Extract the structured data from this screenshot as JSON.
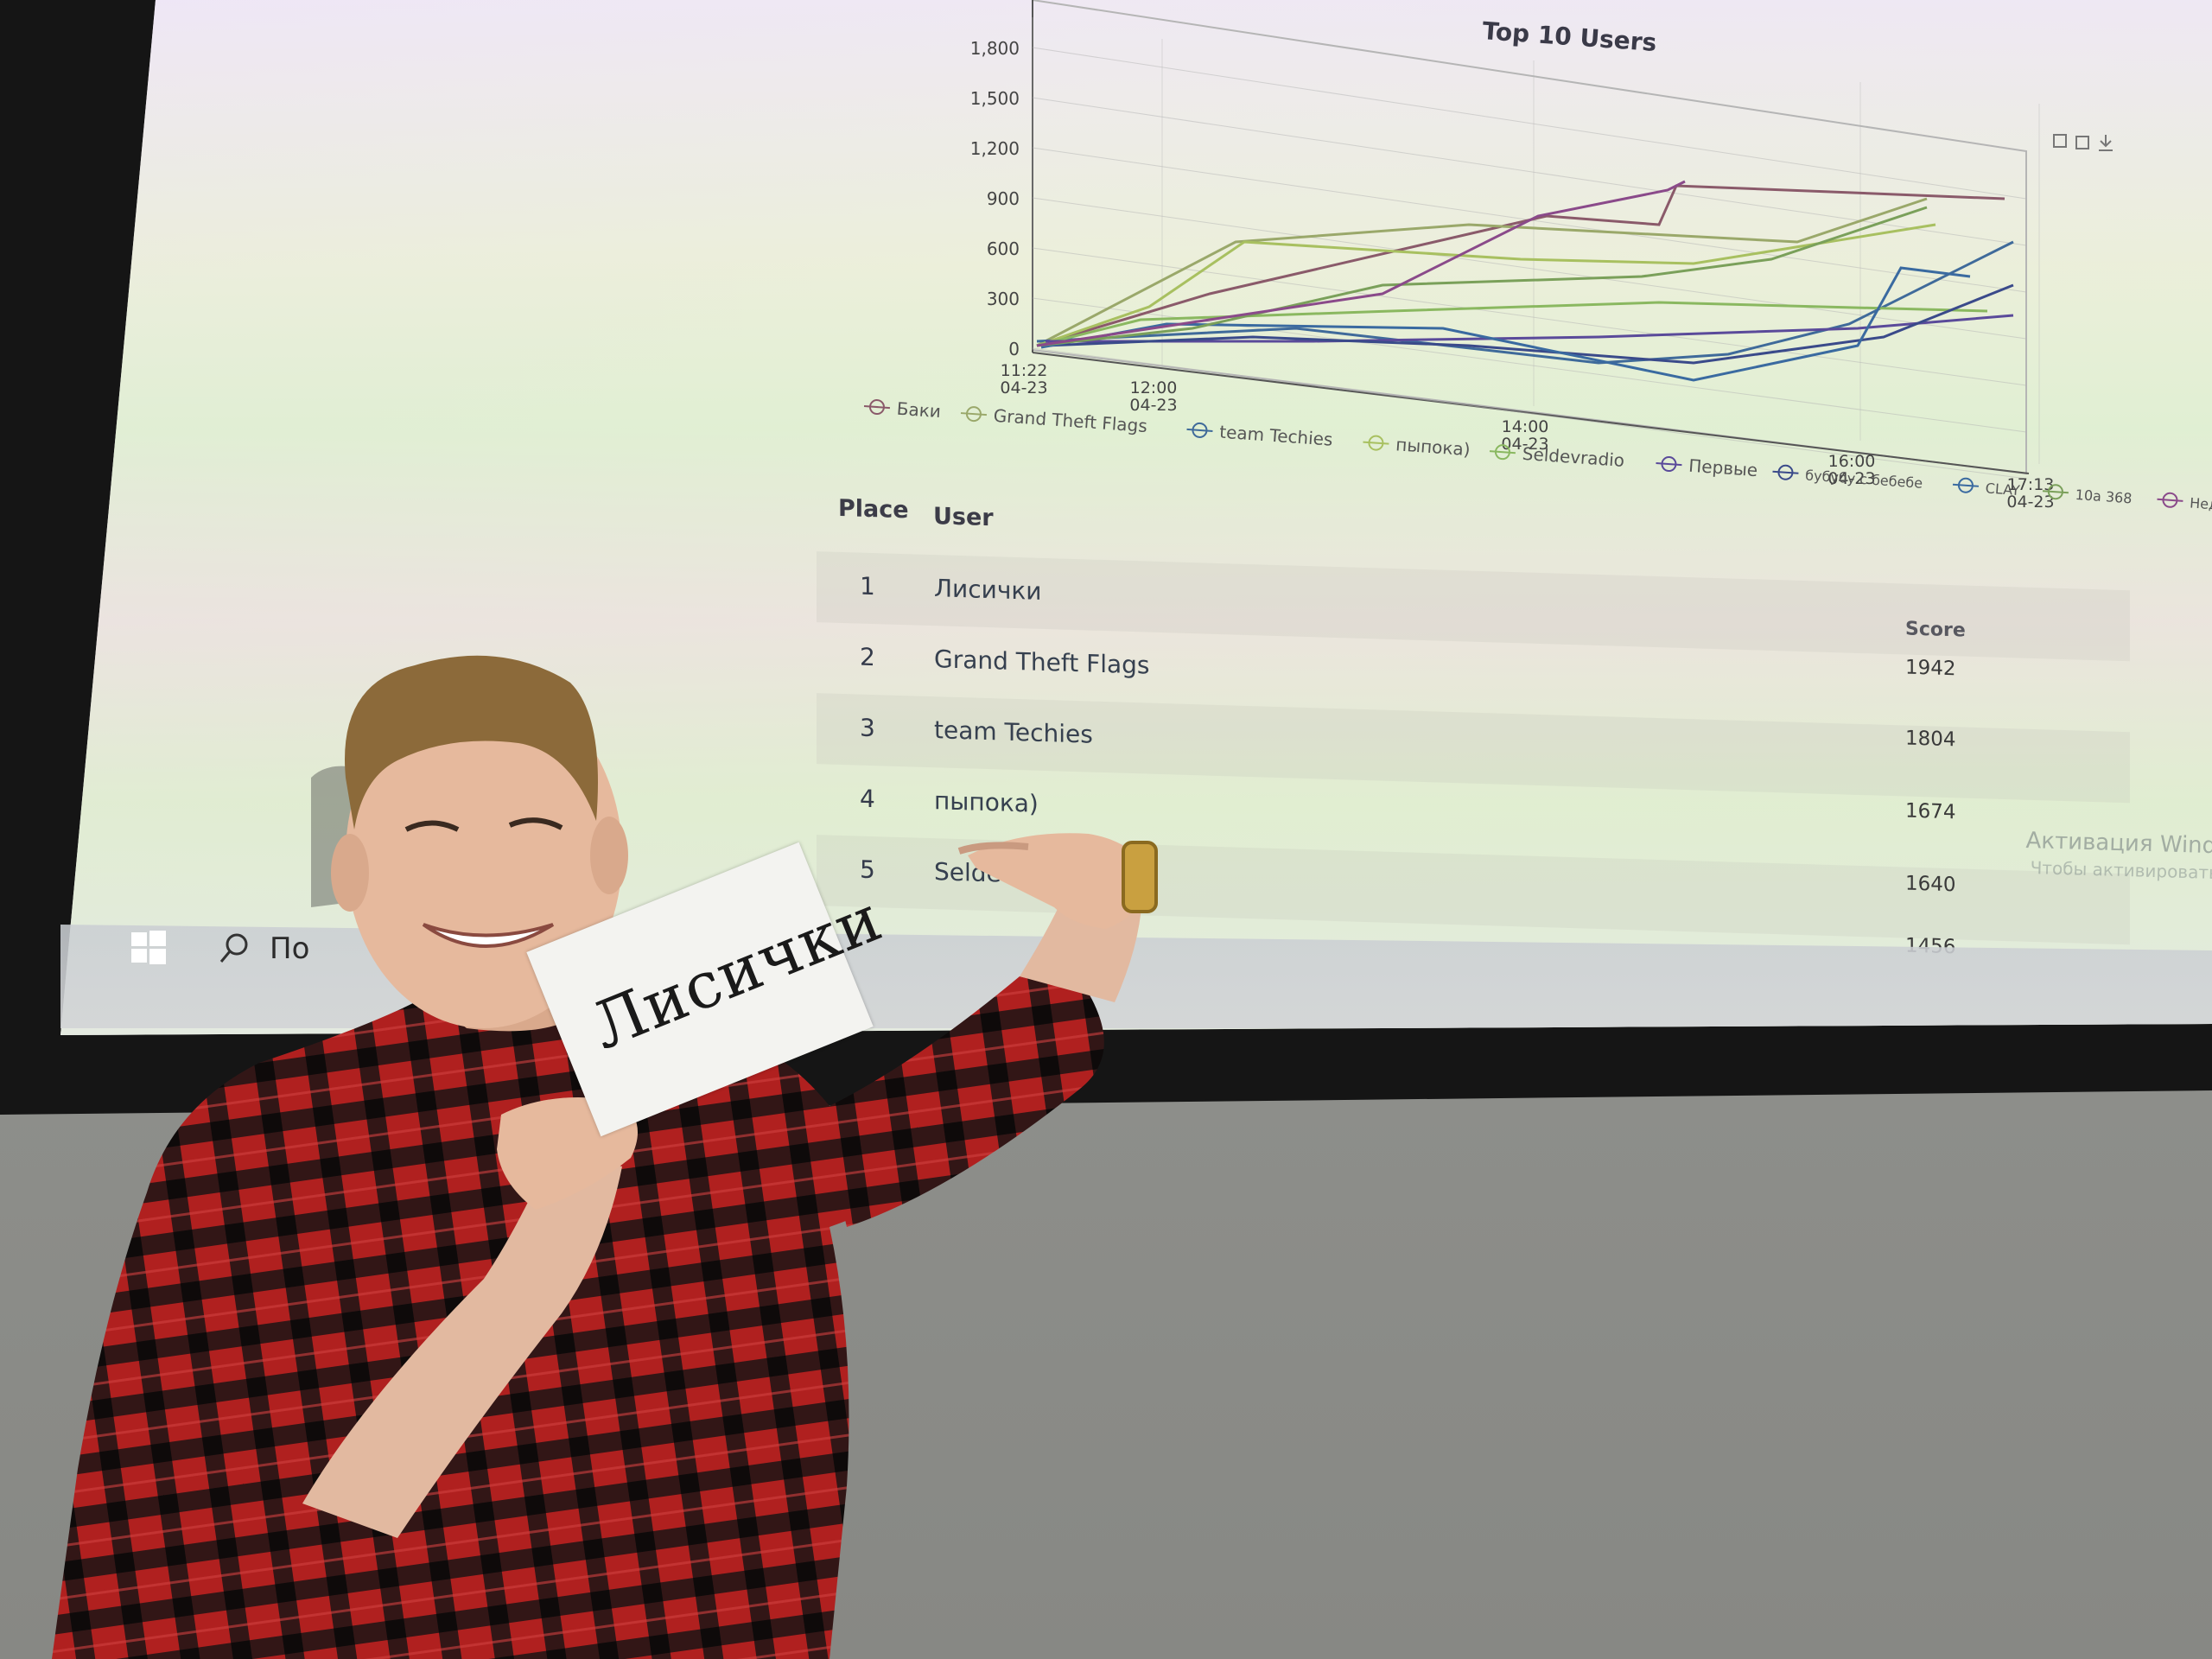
{
  "chart": {
    "title": "Top 10 Users",
    "y_ticks": [
      "1,800",
      "1,500",
      "1,200",
      "900",
      "600",
      "300",
      "0"
    ],
    "x_ticks": [
      {
        "time": "11:22",
        "date": "04-23"
      },
      {
        "time": "12:00",
        "date": "04-23"
      },
      {
        "time": "14:00",
        "date": "04-23"
      },
      {
        "time": "16:00",
        "date": "04-23"
      },
      {
        "time": "17:13",
        "date": "04-23"
      }
    ],
    "legend": [
      {
        "name": "Баки",
        "color": "#8a5a6a"
      },
      {
        "name": "Grand Theft Flags",
        "color": "#9aa86a"
      },
      {
        "name": "team Techies",
        "color": "#3f6a9a"
      },
      {
        "name": "пыпока)",
        "color": "#a8c060"
      },
      {
        "name": "Seldevradio",
        "color": "#8ab860"
      },
      {
        "name": "Первые",
        "color": "#5a4a9a"
      },
      {
        "name": "бубубу с бебебе",
        "color": "#3a4a8a"
      },
      {
        "name": "CLAY",
        "color": "#3a6aa0"
      },
      {
        "name": "10a 368",
        "color": "#7aa05a"
      },
      {
        "name": "Недохакеры какие-то",
        "color": "#8a4a8a"
      }
    ],
    "toolbox_icons": [
      "zoom-icon",
      "zoom-reset-icon",
      "download-icon"
    ]
  },
  "table": {
    "headers": {
      "place": "Place",
      "user": "User",
      "score": "Score"
    },
    "rows": [
      {
        "place": "1",
        "user": "Лисички",
        "score": "1942"
      },
      {
        "place": "2",
        "user": "Grand Theft Flags",
        "score": "1804"
      },
      {
        "place": "3",
        "user": "team Techies",
        "score": "1674"
      },
      {
        "place": "4",
        "user": "пыпока)",
        "score": "1640"
      },
      {
        "place": "5",
        "user": "Seldevradio",
        "score": "1456"
      }
    ]
  },
  "taskbar": {
    "search_text": "По"
  },
  "watermark": {
    "line1": "Активация Windows",
    "line2": "Чтобы активировать Windows"
  },
  "sign": {
    "text": "Лисички"
  },
  "colors": {
    "shirt_red": "#b0201f",
    "shirt_black": "#1c1414",
    "wall": "#8f908c"
  }
}
